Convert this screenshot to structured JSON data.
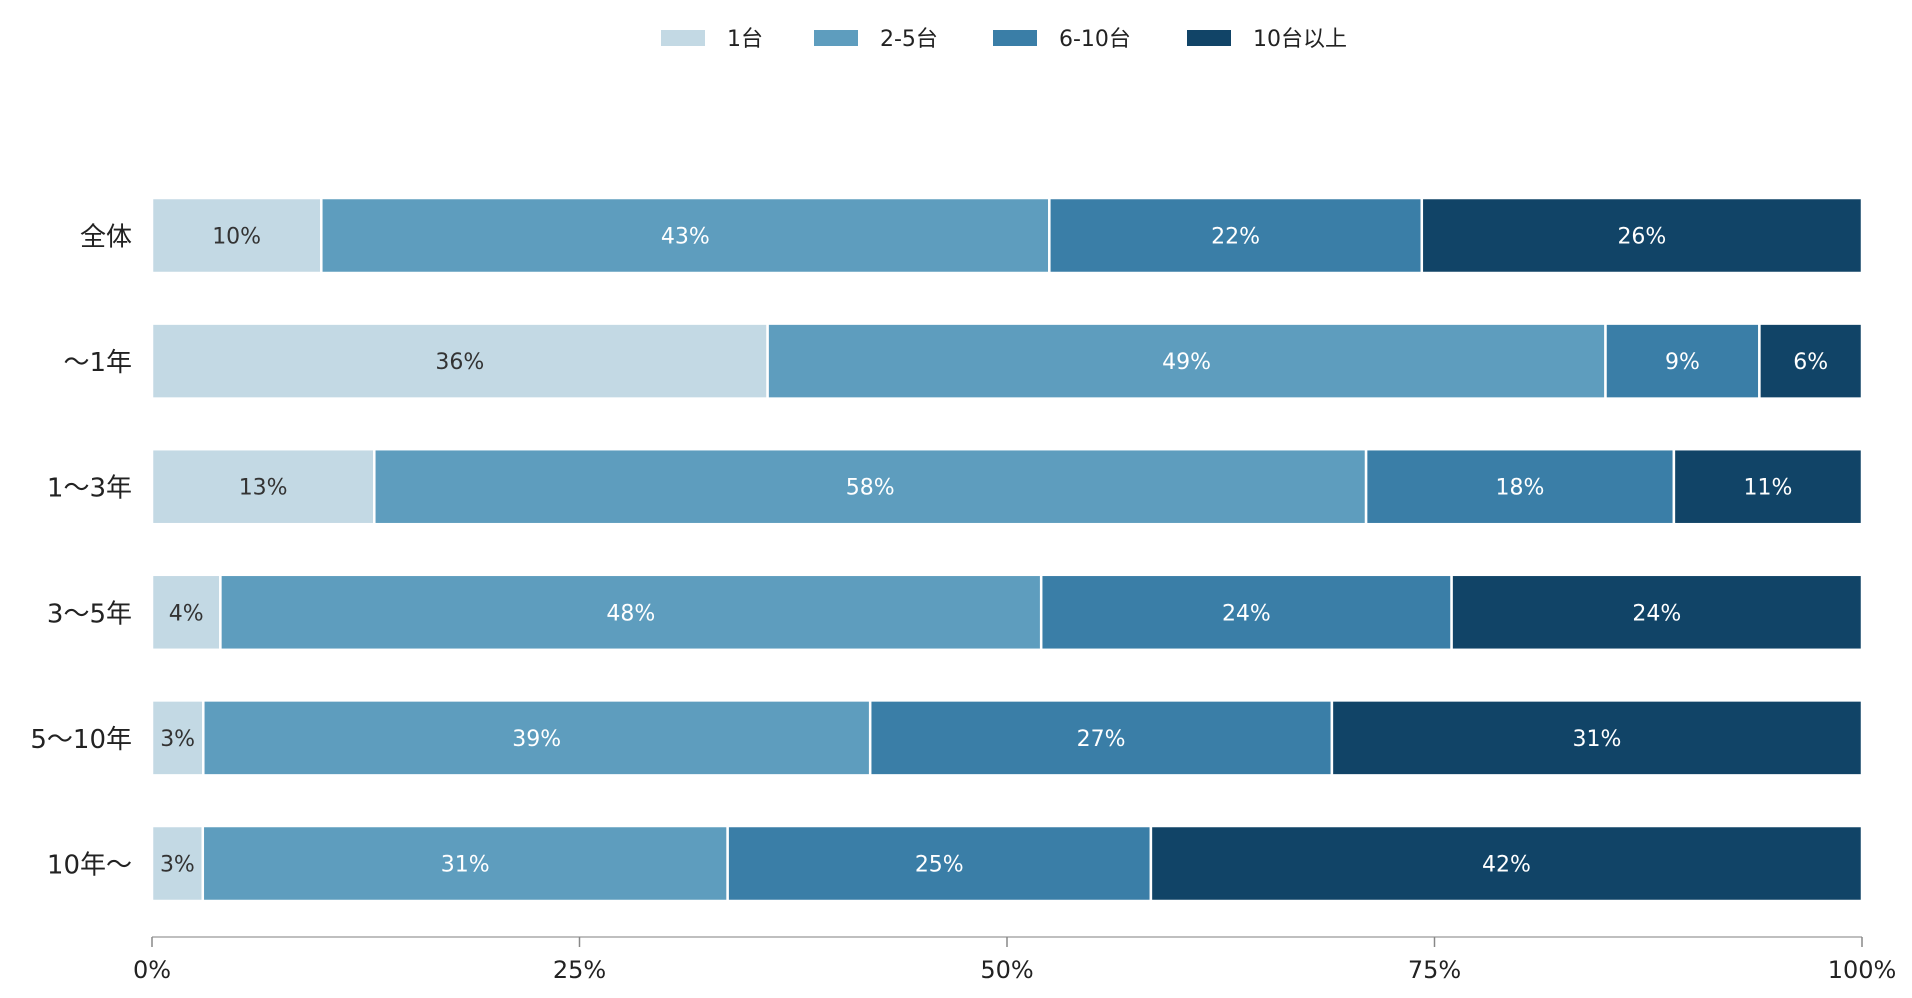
{
  "chart_data": {
    "type": "bar",
    "orientation": "horizontal",
    "stacked": true,
    "categories": [
      "全体",
      "〜1年",
      "1〜3年",
      "3〜5年",
      "5〜10年",
      "10年〜"
    ],
    "series": [
      {
        "name": "1台",
        "color": "#c3d9e4",
        "label_color": "#333333",
        "values": [
          10,
          36,
          13,
          4,
          3,
          3
        ]
      },
      {
        "name": "2-5台",
        "color": "#5e9dbe",
        "label_color": "#ffffff",
        "values": [
          43,
          49,
          58,
          48,
          39,
          31
        ]
      },
      {
        "name": "6-10台",
        "color": "#3a7ea7",
        "label_color": "#ffffff",
        "values": [
          22,
          9,
          18,
          24,
          27,
          25
        ]
      },
      {
        "name": "10台以上",
        "color": "#114467",
        "label_color": "#ffffff",
        "values": [
          26,
          6,
          11,
          24,
          31,
          42
        ]
      }
    ],
    "value_suffix": "%",
    "xlim": [
      0,
      100
    ],
    "x_ticks": [
      0,
      25,
      50,
      75,
      100
    ],
    "x_tick_labels": [
      "0%",
      "25%",
      "50%",
      "75%",
      "100%"
    ],
    "legend_position": "top-center",
    "grid": false
  }
}
